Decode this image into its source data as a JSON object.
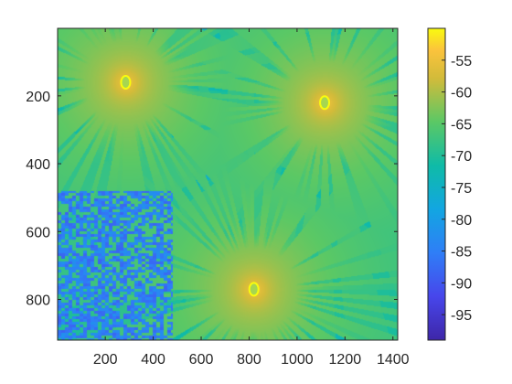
{
  "chart_data": {
    "type": "heatmap",
    "title": "",
    "xlabel": "",
    "ylabel": "",
    "xlim": [
      1,
      1420
    ],
    "ylim": [
      920,
      1
    ],
    "y_direction": "reversed",
    "x_ticks": [
      200,
      400,
      600,
      800,
      1000,
      1200,
      1400
    ],
    "x_tick_labels": [
      "200",
      "400",
      "600",
      "800",
      "1000",
      "1200",
      "1400"
    ],
    "y_ticks": [
      200,
      400,
      600,
      800
    ],
    "y_tick_labels": [
      "200",
      "400",
      "600",
      "800"
    ],
    "colorbar": {
      "colormap": "parula",
      "range": [
        -99,
        -50
      ],
      "ticks": [
        -55,
        -60,
        -65,
        -70,
        -75,
        -80,
        -85,
        -90,
        -95
      ],
      "tick_labels": [
        "-55",
        "-60",
        "-65",
        "-70",
        "-75",
        "-80",
        "-85",
        "-90",
        "-95"
      ]
    },
    "sources": [
      {
        "x": 285,
        "y": 160,
        "peak": -52
      },
      {
        "x": 1115,
        "y": 220,
        "peak": -52
      },
      {
        "x": 820,
        "y": 770,
        "peak": -52
      }
    ],
    "background_level": -78,
    "shadowed_region": {
      "x_range": [
        1,
        480
      ],
      "y_range": [
        480,
        920
      ],
      "level": -92
    },
    "grid": false,
    "legend": "none"
  }
}
